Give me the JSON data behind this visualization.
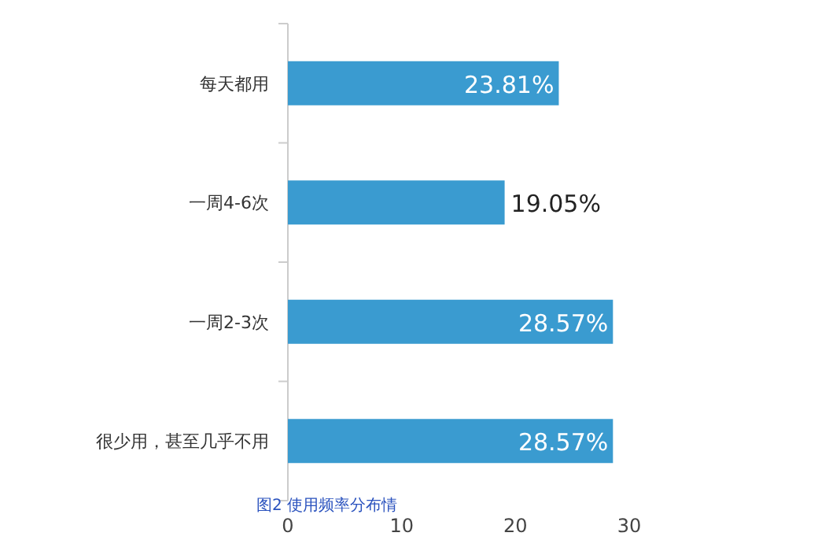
{
  "chart_data": {
    "type": "bar",
    "orientation": "horizontal",
    "title": "图2  使用频率分布情",
    "categories": [
      "每天都用",
      "一周4-6次",
      "一周2-3次",
      "很少用，甚至几乎不用"
    ],
    "values": [
      23.81,
      19.05,
      28.57,
      28.57
    ],
    "value_labels": [
      "23.81%",
      "19.05%",
      "28.57%",
      "28.57%"
    ],
    "color": "#3a9bd0",
    "xlim": [
      0,
      30
    ],
    "xticks": [
      0,
      10,
      20,
      30
    ],
    "grid": false
  }
}
